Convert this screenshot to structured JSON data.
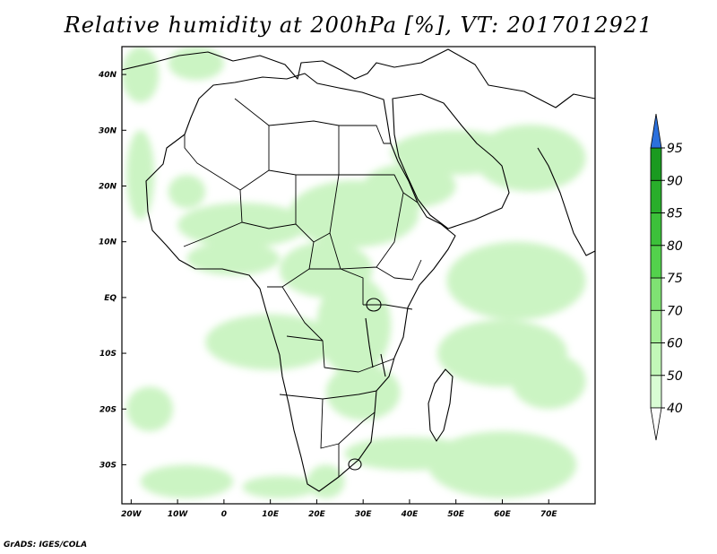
{
  "title": "Relative humidity at 200hPa [%], VT: 2017012921",
  "footer": "GrADS: IGES/COLA",
  "map": {
    "lon_range": [
      -22,
      80
    ],
    "lat_range": [
      -37,
      45
    ],
    "x_ticks": [
      "20W",
      "10W",
      "0",
      "10E",
      "20E",
      "30E",
      "40E",
      "50E",
      "60E",
      "70E"
    ],
    "x_tick_values": [
      -20,
      -10,
      0,
      10,
      20,
      30,
      40,
      50,
      60,
      70
    ],
    "y_ticks": [
      "40N",
      "30N",
      "20N",
      "10N",
      "EQ",
      "10S",
      "20S",
      "30S"
    ],
    "y_tick_values": [
      40,
      30,
      20,
      10,
      0,
      -10,
      -20,
      -30
    ],
    "humid_regions": [
      {
        "lon": -18,
        "lat": 40,
        "rx": 4,
        "ry": 5
      },
      {
        "lon": -6,
        "lat": 42,
        "rx": 6,
        "ry": 3
      },
      {
        "lon": -18,
        "lat": 22,
        "rx": 3,
        "ry": 8
      },
      {
        "lon": -8,
        "lat": 19,
        "rx": 4,
        "ry": 3
      },
      {
        "lon": 4,
        "lat": 13,
        "rx": 14,
        "ry": 4
      },
      {
        "lon": 2,
        "lat": 7,
        "rx": 10,
        "ry": 3
      },
      {
        "lon": 28,
        "lat": 15,
        "rx": 14,
        "ry": 6
      },
      {
        "lon": 40,
        "lat": 20,
        "rx": 10,
        "ry": 4
      },
      {
        "lon": 50,
        "lat": 26,
        "rx": 14,
        "ry": 4
      },
      {
        "lon": 66,
        "lat": 25,
        "rx": 12,
        "ry": 6
      },
      {
        "lon": 22,
        "lat": 5,
        "rx": 10,
        "ry": 5
      },
      {
        "lon": 28,
        "lat": -5,
        "rx": 8,
        "ry": 9
      },
      {
        "lon": 10,
        "lat": -8,
        "rx": 14,
        "ry": 5
      },
      {
        "lon": 30,
        "lat": -17,
        "rx": 8,
        "ry": 5
      },
      {
        "lon": 63,
        "lat": 3,
        "rx": 15,
        "ry": 7
      },
      {
        "lon": 60,
        "lat": -10,
        "rx": 14,
        "ry": 6
      },
      {
        "lon": 70,
        "lat": -15,
        "rx": 8,
        "ry": 5
      },
      {
        "lon": 60,
        "lat": -30,
        "rx": 16,
        "ry": 6
      },
      {
        "lon": 40,
        "lat": -28,
        "rx": 14,
        "ry": 3
      },
      {
        "lon": -16,
        "lat": -20,
        "rx": 5,
        "ry": 4
      },
      {
        "lon": -8,
        "lat": -33,
        "rx": 10,
        "ry": 3
      },
      {
        "lon": 12,
        "lat": -34,
        "rx": 8,
        "ry": 2
      },
      {
        "lon": 22,
        "lat": -33,
        "rx": 4,
        "ry": 3
      }
    ]
  },
  "colorbar": {
    "levels": [
      "40",
      "50",
      "60",
      "70",
      "75",
      "80",
      "85",
      "90",
      "95"
    ],
    "colors": [
      "#f0fff0",
      "#d9fcd4",
      "#c2f7b8",
      "#a5ee97",
      "#7fe173",
      "#53d14c",
      "#3cc13a",
      "#29ae2b",
      "#1a9a20",
      "#2b70dd"
    ],
    "top_extension_color": "#2b70dd",
    "bottom_extension_color": "#ffffff"
  },
  "colors": {
    "land_fill": "#ffffff",
    "humid_fill": "#c6f3bd",
    "border": "#000000"
  }
}
